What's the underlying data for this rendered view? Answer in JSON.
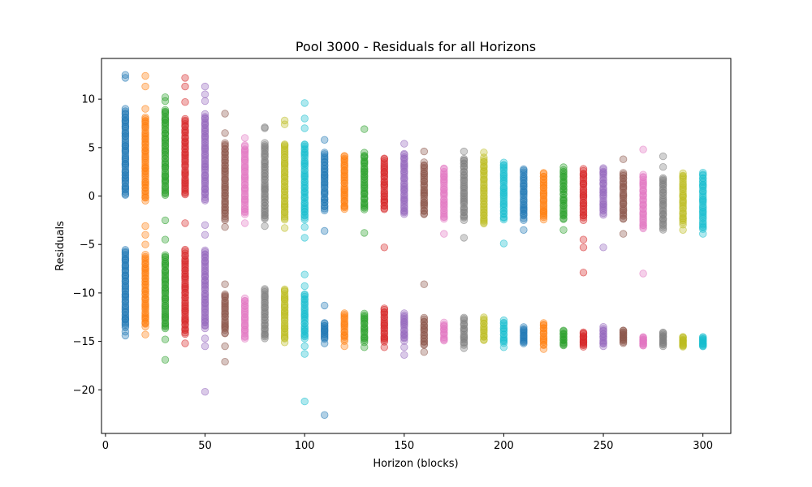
{
  "chart_data": {
    "type": "scatter",
    "title": "Pool 3000 - Residuals for all Horizons",
    "xlabel": "Horizon (blocks)",
    "ylabel": "Residuals",
    "xlim": [
      -2,
      314
    ],
    "ylim": [
      -24.5,
      14.2
    ],
    "xticks": [
      0,
      50,
      100,
      150,
      200,
      250,
      300
    ],
    "yticks": [
      10,
      5,
      0,
      -5,
      -10,
      -15,
      -20
    ],
    "ytick_labels": [
      "10",
      "5",
      "0",
      "−5",
      "−10",
      "−15",
      "−20"
    ],
    "grid": false,
    "legend": "none",
    "palette": [
      "#1f77b4",
      "#ff7f0e",
      "#2ca02c",
      "#d62728",
      "#9467bd",
      "#8c564b",
      "#e377c2",
      "#7f7f7f",
      "#bcbd22",
      "#17becf"
    ],
    "series": [
      {
        "x": 10,
        "upper": [
          0.0,
          8.8
        ],
        "lower": [
          -13.6,
          -5.5
        ],
        "outliers": [
          12.5,
          12.2,
          9.0,
          -14.4,
          -14.0
        ]
      },
      {
        "x": 20,
        "upper": [
          -0.5,
          8.2
        ],
        "lower": [
          -13.5,
          -6.0
        ],
        "outliers": [
          12.4,
          11.3,
          9.0,
          -3.1,
          -4.0,
          -5.0,
          -14.3
        ]
      },
      {
        "x": 30,
        "upper": [
          0.0,
          9.0
        ],
        "lower": [
          -13.8,
          -6.0
        ],
        "outliers": [
          10.2,
          9.8,
          -2.5,
          -4.5,
          -14.8,
          -16.9
        ]
      },
      {
        "x": 40,
        "upper": [
          0.0,
          8.0
        ],
        "lower": [
          -14.3,
          -5.5
        ],
        "outliers": [
          12.2,
          11.3,
          9.7,
          -2.8,
          -15.2
        ]
      },
      {
        "x": 50,
        "upper": [
          -0.5,
          8.5
        ],
        "lower": [
          -13.7,
          -5.5
        ],
        "outliers": [
          11.3,
          10.5,
          9.8,
          -3.0,
          -4.0,
          -14.7,
          -15.5,
          -20.2
        ]
      },
      {
        "x": 60,
        "upper": [
          -2.5,
          5.5
        ],
        "lower": [
          -14.3,
          -10.0
        ],
        "outliers": [
          8.5,
          6.5,
          -3.2,
          -9.1,
          -15.5,
          -17.1
        ]
      },
      {
        "x": 70,
        "upper": [
          -2.0,
          5.3
        ],
        "lower": [
          -14.8,
          -10.5
        ],
        "outliers": [
          6.0,
          -2.8
        ]
      },
      {
        "x": 80,
        "upper": [
          -2.5,
          5.5
        ],
        "lower": [
          -14.8,
          -9.5
        ],
        "outliers": [
          7.1,
          7.0,
          -3.1
        ]
      },
      {
        "x": 90,
        "upper": [
          -2.5,
          5.5
        ],
        "lower": [
          -14.8,
          -9.5
        ],
        "outliers": [
          7.8,
          7.4,
          -3.3,
          -15.1
        ]
      },
      {
        "x": 100,
        "upper": [
          -2.5,
          5.5
        ],
        "lower": [
          -14.8,
          -10.0
        ],
        "outliers": [
          9.6,
          8.0,
          7.0,
          -3.2,
          -4.3,
          -8.1,
          -9.3,
          -15.5,
          -16.3,
          -21.2
        ]
      },
      {
        "x": 110,
        "upper": [
          -1.5,
          4.5
        ],
        "lower": [
          -14.8,
          -13.0
        ],
        "outliers": [
          5.8,
          -3.6,
          -11.3,
          -15.2,
          -22.6
        ]
      },
      {
        "x": 120,
        "upper": [
          -1.5,
          4.3
        ],
        "lower": [
          -15.0,
          -12.0
        ],
        "outliers": [
          -15.5
        ]
      },
      {
        "x": 130,
        "upper": [
          -1.5,
          4.5
        ],
        "lower": [
          -15.2,
          -12.0
        ],
        "outliers": [
          6.9,
          -3.8,
          -15.6
        ]
      },
      {
        "x": 140,
        "upper": [
          -1.5,
          4.0
        ],
        "lower": [
          -15.2,
          -11.5
        ],
        "outliers": [
          -5.3,
          -15.6
        ]
      },
      {
        "x": 150,
        "upper": [
          -2.0,
          4.5
        ],
        "lower": [
          -15.0,
          -12.0
        ],
        "outliers": [
          5.4,
          -15.6,
          -16.4
        ]
      },
      {
        "x": 160,
        "upper": [
          -2.0,
          3.5
        ],
        "lower": [
          -15.5,
          -12.5
        ],
        "outliers": [
          4.6,
          -9.1,
          -16.1
        ]
      },
      {
        "x": 170,
        "upper": [
          -2.5,
          3.0
        ],
        "lower": [
          -15.0,
          -13.0
        ],
        "outliers": [
          -3.9
        ]
      },
      {
        "x": 180,
        "upper": [
          -2.5,
          4.0
        ],
        "lower": [
          -15.5,
          -12.5
        ],
        "outliers": [
          4.6,
          -4.3,
          -15.7
        ]
      },
      {
        "x": 190,
        "upper": [
          -3.0,
          4.0
        ],
        "lower": [
          -15.0,
          -12.5
        ],
        "outliers": [
          4.5
        ]
      },
      {
        "x": 200,
        "upper": [
          -2.5,
          3.5
        ],
        "lower": [
          -15.3,
          -12.8
        ],
        "outliers": [
          -4.9,
          -15.6
        ]
      },
      {
        "x": 210,
        "upper": [
          -2.5,
          2.8
        ],
        "lower": [
          -15.3,
          -13.5
        ],
        "outliers": [
          -3.5
        ]
      },
      {
        "x": 220,
        "upper": [
          -2.5,
          2.5
        ],
        "lower": [
          -15.5,
          -13.0
        ],
        "outliers": [
          -15.8
        ]
      },
      {
        "x": 230,
        "upper": [
          -2.5,
          3.0
        ],
        "lower": [
          -15.5,
          -13.8
        ],
        "outliers": [
          -3.5
        ]
      },
      {
        "x": 240,
        "upper": [
          -2.5,
          2.8
        ],
        "lower": [
          -15.6,
          -14.0
        ],
        "outliers": [
          -4.5,
          -5.3,
          -7.9
        ]
      },
      {
        "x": 250,
        "upper": [
          -2.0,
          3.0
        ],
        "lower": [
          -15.5,
          -13.5
        ],
        "outliers": [
          -5.3
        ]
      },
      {
        "x": 260,
        "upper": [
          -2.5,
          2.5
        ],
        "lower": [
          -15.2,
          -13.8
        ],
        "outliers": [
          3.8,
          -3.9
        ]
      },
      {
        "x": 270,
        "upper": [
          -3.5,
          2.3
        ],
        "lower": [
          -15.5,
          -14.5
        ],
        "outliers": [
          4.8,
          -8.0
        ]
      },
      {
        "x": 280,
        "upper": [
          -3.5,
          2.0
        ],
        "lower": [
          -15.5,
          -14.0
        ],
        "outliers": [
          4.1,
          3.0
        ]
      },
      {
        "x": 290,
        "upper": [
          -3.0,
          2.4
        ],
        "lower": [
          -15.6,
          -14.5
        ],
        "outliers": [
          -3.5
        ]
      },
      {
        "x": 300,
        "upper": [
          -3.5,
          2.5
        ],
        "lower": [
          -15.6,
          -14.5
        ],
        "outliers": [
          -3.9
        ]
      }
    ]
  }
}
